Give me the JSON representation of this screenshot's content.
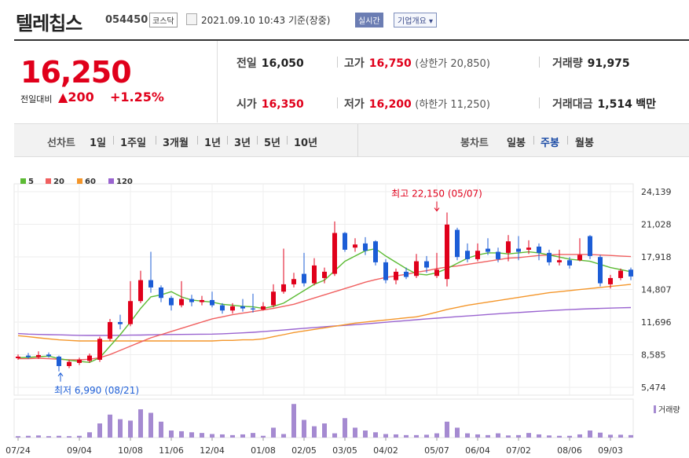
{
  "header": {
    "stock_name": "텔레칩스",
    "stock_code": "054450",
    "market": "코스닥",
    "datetime": "2021.09.10 10:43",
    "basis": "기준(장중)",
    "realtime_label": "실시간",
    "overview_label": "기업개요"
  },
  "price": {
    "current": "16,250",
    "change_label": "전일대비",
    "change_value": "200",
    "change_pct": "+1.25%"
  },
  "stats": {
    "prev_label": "전일",
    "prev_value": "16,050",
    "high_label": "고가",
    "high_value": "16,750",
    "upper_limit": "(상한가 20,850)",
    "volume_label": "거래량",
    "volume_value": "91,975",
    "open_label": "시가",
    "open_value": "16,350",
    "low_label": "저가",
    "low_value": "16,200",
    "lower_limit": "(하한가 11,250)",
    "amount_label": "거래대금",
    "amount_value": "1,514",
    "amount_unit": "백만"
  },
  "tabs": {
    "line_label": "선차트",
    "periods": [
      "1일",
      "1주일",
      "3개월",
      "1년",
      "3년",
      "5년",
      "10년"
    ],
    "candle_label": "봉차트",
    "candles": [
      "일봉",
      "주봉",
      "월봉"
    ],
    "active_candle": "주봉"
  },
  "colors": {
    "up": "#e0001b",
    "down": "#1c5dd6",
    "ma5": "#5cbb34",
    "ma20": "#f06060",
    "ma60": "#f4962a",
    "ma120": "#9a64d0",
    "volume": "#a58ad1"
  },
  "chart_data": {
    "type": "candlestick",
    "legend": [
      "5",
      "20",
      "60",
      "120"
    ],
    "y_ticks": [
      "24,139",
      "21,028",
      "17,918",
      "14,807",
      "11,696",
      "8,585",
      "5,474"
    ],
    "ylim": [
      5474,
      24139
    ],
    "x_labels": [
      "07/24",
      "09/04",
      "10/08",
      "11/06",
      "12/04",
      "01/08",
      "02/05",
      "03/05",
      "04/02",
      "05/07",
      "06/04",
      "07/02",
      "08/06",
      "09/03"
    ],
    "x_label_index": [
      0,
      6,
      11,
      15,
      19,
      24,
      28,
      32,
      36,
      41,
      45,
      49,
      54,
      58
    ],
    "max_annotation": "최고 22,150 (05/07)",
    "max_index": 41,
    "max_value": 22150,
    "min_annotation": "최저 6,990 (08/21)",
    "min_index": 4,
    "min_value": 6990,
    "volume_label": "거래량",
    "candles": [
      {
        "o": 8250,
        "c": 8400,
        "h": 8600,
        "l": 8100
      },
      {
        "o": 8500,
        "c": 8350,
        "h": 8750,
        "l": 8200
      },
      {
        "o": 8350,
        "c": 8550,
        "h": 8900,
        "l": 8200
      },
      {
        "o": 8600,
        "c": 8450,
        "h": 8800,
        "l": 8300
      },
      {
        "o": 8400,
        "c": 7500,
        "h": 8500,
        "l": 6990
      },
      {
        "o": 7500,
        "c": 7900,
        "h": 8100,
        "l": 7300
      },
      {
        "o": 7800,
        "c": 8100,
        "h": 8300,
        "l": 7600
      },
      {
        "o": 8000,
        "c": 8500,
        "h": 8700,
        "l": 7800
      },
      {
        "o": 8100,
        "c": 10100,
        "h": 10300,
        "l": 7900
      },
      {
        "o": 10100,
        "c": 11700,
        "h": 12000,
        "l": 9900
      },
      {
        "o": 11700,
        "c": 11500,
        "h": 12400,
        "l": 11000
      },
      {
        "o": 11500,
        "c": 13700,
        "h": 15600,
        "l": 11300
      },
      {
        "o": 13700,
        "c": 15700,
        "h": 16600,
        "l": 13500
      },
      {
        "o": 15700,
        "c": 15000,
        "h": 18400,
        "l": 14500
      },
      {
        "o": 15000,
        "c": 14000,
        "h": 15200,
        "l": 13600
      },
      {
        "o": 14000,
        "c": 13300,
        "h": 14200,
        "l": 12800
      },
      {
        "o": 13300,
        "c": 13900,
        "h": 15600,
        "l": 13100
      },
      {
        "o": 13900,
        "c": 13600,
        "h": 14300,
        "l": 13200
      },
      {
        "o": 13600,
        "c": 13800,
        "h": 14200,
        "l": 13300
      },
      {
        "o": 13800,
        "c": 13300,
        "h": 14600,
        "l": 13100
      },
      {
        "o": 13300,
        "c": 12800,
        "h": 13500,
        "l": 12500
      },
      {
        "o": 12800,
        "c": 13200,
        "h": 13500,
        "l": 12500
      },
      {
        "o": 13200,
        "c": 13000,
        "h": 13900,
        "l": 12700
      },
      {
        "o": 13000,
        "c": 12900,
        "h": 14400,
        "l": 12600
      },
      {
        "o": 12900,
        "c": 13200,
        "h": 13600,
        "l": 12800
      },
      {
        "o": 13300,
        "c": 14600,
        "h": 15300,
        "l": 13100
      },
      {
        "o": 14600,
        "c": 15300,
        "h": 18700,
        "l": 14400
      },
      {
        "o": 15300,
        "c": 15800,
        "h": 16400,
        "l": 15000
      },
      {
        "o": 16300,
        "c": 15400,
        "h": 18300,
        "l": 15100
      },
      {
        "o": 15400,
        "c": 17100,
        "h": 17800,
        "l": 15200
      },
      {
        "o": 15900,
        "c": 16500,
        "h": 16900,
        "l": 15400
      },
      {
        "o": 16300,
        "c": 20200,
        "h": 21300,
        "l": 16100
      },
      {
        "o": 20200,
        "c": 18600,
        "h": 20300,
        "l": 18400
      },
      {
        "o": 18800,
        "c": 19100,
        "h": 19700,
        "l": 18400
      },
      {
        "o": 19200,
        "c": 18500,
        "h": 19800,
        "l": 18100
      },
      {
        "o": 19400,
        "c": 17400,
        "h": 19500,
        "l": 17100
      },
      {
        "o": 17400,
        "c": 15700,
        "h": 17700,
        "l": 15400
      },
      {
        "o": 15700,
        "c": 16500,
        "h": 16800,
        "l": 15300
      },
      {
        "o": 16500,
        "c": 16000,
        "h": 16900,
        "l": 15800
      },
      {
        "o": 16100,
        "c": 17500,
        "h": 18200,
        "l": 15900
      },
      {
        "o": 17500,
        "c": 16900,
        "h": 18000,
        "l": 16400
      },
      {
        "o": 16100,
        "c": 16700,
        "h": 18300,
        "l": 15900
      },
      {
        "o": 15800,
        "c": 21000,
        "h": 22150,
        "l": 15100
      },
      {
        "o": 20500,
        "c": 17900,
        "h": 20700,
        "l": 17600
      },
      {
        "o": 18500,
        "c": 17700,
        "h": 19200,
        "l": 17400
      },
      {
        "o": 17700,
        "c": 18500,
        "h": 19200,
        "l": 17500
      },
      {
        "o": 18700,
        "c": 18400,
        "h": 19700,
        "l": 18100
      },
      {
        "o": 18400,
        "c": 17700,
        "h": 18800,
        "l": 17400
      },
      {
        "o": 18300,
        "c": 19400,
        "h": 20000,
        "l": 17500
      },
      {
        "o": 18700,
        "c": 18400,
        "h": 19900,
        "l": 17600
      },
      {
        "o": 18600,
        "c": 18800,
        "h": 19500,
        "l": 18200
      },
      {
        "o": 18900,
        "c": 18300,
        "h": 19200,
        "l": 17600
      },
      {
        "o": 18300,
        "c": 17400,
        "h": 18600,
        "l": 17100
      },
      {
        "o": 17400,
        "c": 17600,
        "h": 18600,
        "l": 17100
      },
      {
        "o": 17600,
        "c": 17100,
        "h": 17900,
        "l": 16800
      },
      {
        "o": 17600,
        "c": 18100,
        "h": 19700,
        "l": 17500
      },
      {
        "o": 19900,
        "c": 18000,
        "h": 20000,
        "l": 17700
      },
      {
        "o": 17900,
        "c": 15400,
        "h": 18100,
        "l": 15100
      },
      {
        "o": 15300,
        "c": 15900,
        "h": 16200,
        "l": 14900
      },
      {
        "o": 15900,
        "c": 16600,
        "h": 16800,
        "l": 15700
      },
      {
        "o": 16700,
        "c": 16050,
        "h": 16900,
        "l": 15700
      }
    ],
    "volume_levels": [
      0.04,
      0.05,
      0.06,
      0.04,
      0.05,
      0.04,
      0.05,
      0.15,
      0.4,
      0.65,
      0.52,
      0.48,
      0.8,
      0.7,
      0.45,
      0.2,
      0.18,
      0.15,
      0.13,
      0.1,
      0.09,
      0.07,
      0.09,
      0.13,
      0.05,
      0.28,
      0.1,
      0.95,
      0.5,
      0.32,
      0.4,
      0.12,
      0.55,
      0.28,
      0.2,
      0.15,
      0.1,
      0.09,
      0.07,
      0.07,
      0.08,
      0.12,
      0.45,
      0.28,
      0.12,
      0.09,
      0.07,
      0.12,
      0.06,
      0.07,
      0.13,
      0.09,
      0.06,
      0.05,
      0.05,
      0.09,
      0.2,
      0.14,
      0.08,
      0.08,
      0.07
    ],
    "ma5": [
      8300,
      8320,
      8400,
      8450,
      8200,
      8050,
      7950,
      7850,
      8300,
      9400,
      10500,
      11700,
      13000,
      14100,
      14300,
      14600,
      14100,
      13800,
      13700,
      13600,
      13400,
      13300,
      13200,
      13150,
      13000,
      13200,
      13500,
      14100,
      14700,
      15300,
      15700,
      16600,
      17500,
      18000,
      18500,
      18700,
      18000,
      17400,
      16800,
      16300,
      16200,
      16400,
      16800,
      17300,
      17800,
      18100,
      18300,
      18300,
      18200,
      18300,
      18400,
      18300,
      18100,
      17900,
      17700,
      17600,
      17500,
      17200,
      16900,
      16700,
      16500
    ],
    "ma20": [
      8200,
      8200,
      8250,
      8200,
      8150,
      8100,
      8100,
      8150,
      8300,
      8600,
      9000,
      9400,
      9800,
      10200,
      10500,
      10800,
      11100,
      11400,
      11700,
      12000,
      12200,
      12400,
      12550,
      12700,
      12850,
      13000,
      13200,
      13400,
      13700,
      14000,
      14300,
      14600,
      14900,
      15200,
      15500,
      15750,
      15950,
      16100,
      16250,
      16450,
      16600,
      16800,
      16950,
      17050,
      17200,
      17350,
      17500,
      17650,
      17800,
      17850,
      17950,
      18050,
      18100,
      18150,
      18150,
      18150,
      18150,
      18100,
      18050,
      18000,
      17950
    ],
    "ma60": [
      10400,
      10300,
      10200,
      10100,
      10000,
      9950,
      9900,
      9900,
      9900,
      9900,
      9900,
      9900,
      9900,
      9900,
      9900,
      9900,
      9900,
      9900,
      9900,
      9900,
      9950,
      9950,
      10000,
      10000,
      10100,
      10300,
      10500,
      10700,
      10850,
      11000,
      11150,
      11300,
      11450,
      11600,
      11700,
      11800,
      11900,
      12000,
      12100,
      12200,
      12400,
      12650,
      12900,
      13100,
      13300,
      13450,
      13600,
      13750,
      13900,
      14050,
      14200,
      14350,
      14500,
      14600,
      14700,
      14800,
      14900,
      15000,
      15100,
      15200,
      15300
    ],
    "ma120": [
      10600,
      10550,
      10520,
      10500,
      10480,
      10450,
      10430,
      10420,
      10420,
      10430,
      10440,
      10450,
      10460,
      10480,
      10500,
      10510,
      10520,
      10530,
      10540,
      10550,
      10580,
      10620,
      10670,
      10720,
      10790,
      10860,
      10940,
      11020,
      11100,
      11180,
      11250,
      11320,
      11380,
      11450,
      11520,
      11600,
      11680,
      11760,
      11840,
      11920,
      12000,
      12070,
      12140,
      12210,
      12280,
      12350,
      12420,
      12490,
      12550,
      12610,
      12670,
      12730,
      12790,
      12840,
      12890,
      12930,
      12970,
      13000,
      13030,
      13060,
      13080
    ]
  }
}
